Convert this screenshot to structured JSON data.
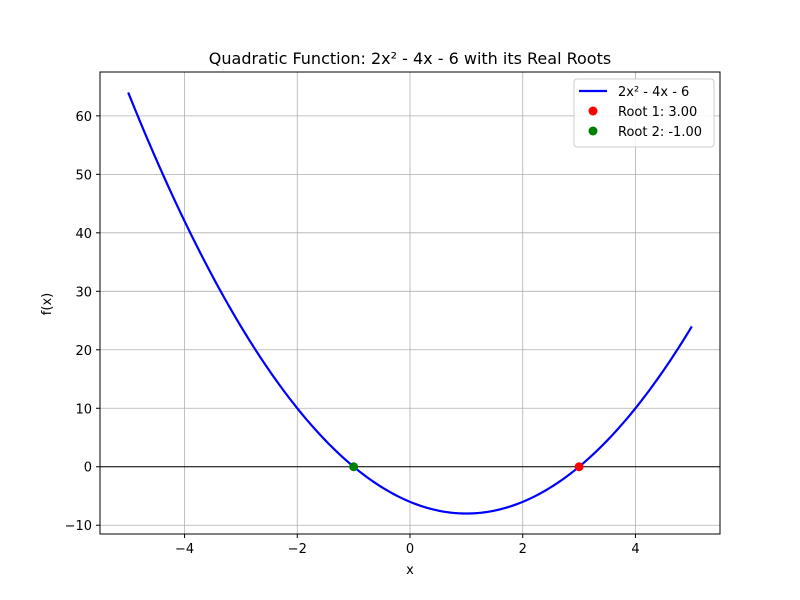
{
  "chart_data": {
    "type": "line",
    "title": "Quadratic Function: 2x² - 4x - 6 with its Real Roots",
    "xlabel": "x",
    "ylabel": "f(x)",
    "xlim": [
      -5.5,
      5.5
    ],
    "ylim": [
      -11.5,
      67.5
    ],
    "x_ticks": [
      -4,
      -2,
      0,
      2,
      4
    ],
    "x_tick_labels": [
      "−4",
      "−2",
      "0",
      "2",
      "4"
    ],
    "y_ticks": [
      -10,
      0,
      10,
      20,
      30,
      40,
      50,
      60
    ],
    "y_tick_labels": [
      "−10",
      "0",
      "10",
      "20",
      "30",
      "40",
      "50",
      "60"
    ],
    "grid": true,
    "zero_line": true,
    "legend_position": "top-right",
    "series": [
      {
        "name": "2x² - 4x - 6",
        "kind": "line",
        "color": "#0000ff",
        "function": {
          "a": 2,
          "b": -4,
          "c": -6
        },
        "x_range": [
          -5,
          5
        ]
      },
      {
        "name": "Root 1: 3.00",
        "kind": "scatter",
        "color": "#ff0000",
        "points": [
          {
            "x": 3,
            "y": 0
          }
        ]
      },
      {
        "name": "Root 2: -1.00",
        "kind": "scatter",
        "color": "#008000",
        "points": [
          {
            "x": -1,
            "y": 0
          }
        ]
      }
    ]
  }
}
